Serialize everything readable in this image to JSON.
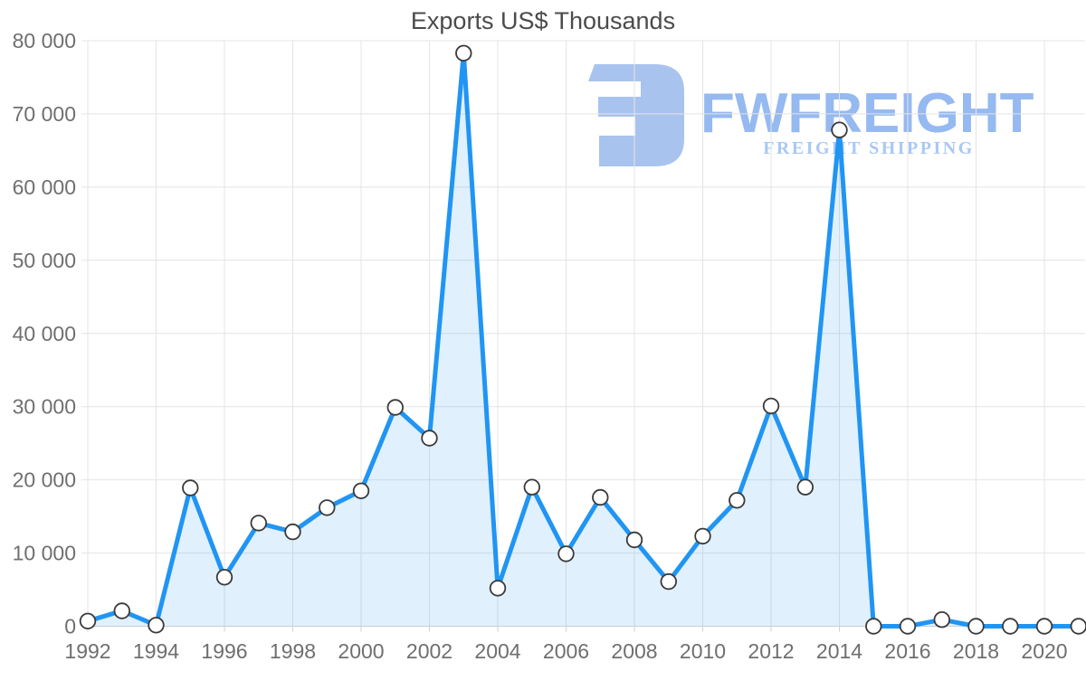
{
  "chart_data": {
    "type": "area",
    "title": "Exports US$ Thousands",
    "xlabel": "",
    "ylabel": "",
    "xlim": [
      1992,
      2021
    ],
    "ylim": [
      0,
      80000
    ],
    "grid": true,
    "legend": "none",
    "x": [
      1992,
      1993,
      1994,
      1995,
      1996,
      1997,
      1998,
      1999,
      2000,
      2001,
      2002,
      2003,
      2004,
      2005,
      2006,
      2007,
      2008,
      2009,
      2010,
      2011,
      2012,
      2013,
      2014,
      2015,
      2016,
      2017,
      2018,
      2019,
      2020,
      2021
    ],
    "values": [
      700,
      2100,
      150,
      18900,
      6700,
      14100,
      12900,
      16200,
      18500,
      29900,
      25700,
      78300,
      5200,
      19000,
      9900,
      17600,
      11800,
      6100,
      12300,
      17200,
      30100,
      19000,
      67800,
      0,
      0,
      900,
      0,
      0,
      0,
      0
    ],
    "x_tick_values": [
      1992,
      1994,
      1996,
      1998,
      2000,
      2002,
      2004,
      2006,
      2008,
      2010,
      2012,
      2014,
      2016,
      2018,
      2020
    ],
    "x_tick_labels": [
      "1992",
      "1994",
      "1996",
      "1998",
      "2000",
      "2002",
      "2004",
      "2006",
      "2008",
      "2010",
      "2012",
      "2014",
      "2016",
      "2018",
      "2020"
    ],
    "y_tick_values": [
      0,
      10000,
      20000,
      30000,
      40000,
      50000,
      60000,
      70000,
      80000
    ],
    "y_tick_labels": [
      "0",
      "10 000",
      "20 000",
      "30 000",
      "40 000",
      "50 000",
      "60 000",
      "70 000",
      "80 000"
    ],
    "colors": {
      "line": "#2095f3",
      "area": "rgba(33,150,243,0.14)",
      "marker_fill": "#ffffff",
      "marker_stroke": "#3a3a3a",
      "grid": "#e4e4e4",
      "axis": "#d2d2d2",
      "tick_label": "#6f6f6f",
      "title": "#4b4b4b"
    }
  },
  "watermark": {
    "brand": "FWFREIGHT",
    "tagline": "FREIGHT SHIPPING",
    "colors": {
      "mark": "#a9c3ef",
      "brand": "#95b9f1",
      "tagline": "#a9c8f6"
    }
  }
}
